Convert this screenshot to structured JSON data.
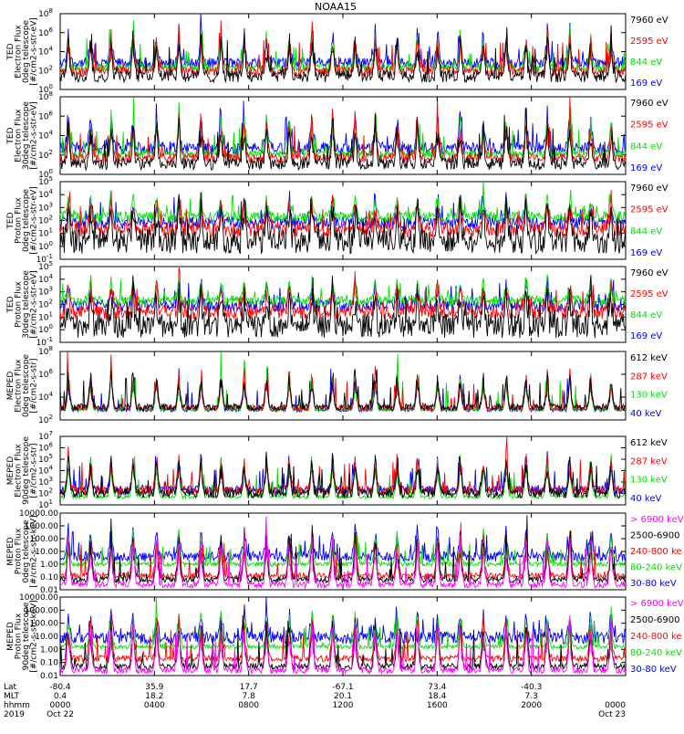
{
  "title": "NOAA15",
  "colors": {
    "blue": "#0000ff",
    "red": "#ff0000",
    "green": "#00e000",
    "black": "#000000",
    "magenta": "#ff00ff"
  },
  "chart_data": [
    {
      "type": "line",
      "ylabel": [
        "TED",
        "Electron Flux",
        "0deg telescope",
        "[#/cm2-s-str-eV]"
      ],
      "ticks": [
        "10^0",
        "10^2",
        "10^4",
        "10^6",
        "10^8"
      ],
      "series": [
        {
          "name": "7960 eV",
          "color": "black",
          "base": 1.4,
          "spread": 0.8
        },
        {
          "name": "2595 eV",
          "color": "red",
          "base": 1.9,
          "spread": 0.6
        },
        {
          "name": "844 eV",
          "color": "green",
          "base": 2.3,
          "spread": 0.5
        },
        {
          "name": "169 eV",
          "color": "blue",
          "base": 2.8,
          "spread": 0.7
        }
      ],
      "ylim": [
        0,
        8
      ]
    },
    {
      "type": "line",
      "ylabel": [
        "TED",
        "Electron Flux",
        "30deg telescope",
        "[#/cm2-s-str-eV]"
      ],
      "ticks": [
        "10^0",
        "10^2",
        "10^4",
        "10^6",
        "10^8"
      ],
      "series": [
        {
          "name": "7960 eV",
          "color": "black",
          "base": 1.1,
          "spread": 0.8
        },
        {
          "name": "2595 eV",
          "color": "red",
          "base": 1.7,
          "spread": 0.6
        },
        {
          "name": "844 eV",
          "color": "green",
          "base": 2.1,
          "spread": 0.5
        },
        {
          "name": "169 eV",
          "color": "blue",
          "base": 2.7,
          "spread": 0.8
        }
      ],
      "ylim": [
        0,
        8
      ]
    },
    {
      "type": "line",
      "ylabel": [
        "TED",
        "Proton Flux",
        "0deg telescope",
        "[#/cm2-s-str-eV]"
      ],
      "ticks": [
        "10^-1",
        "10^0",
        "10^1",
        "10^2",
        "10^3",
        "10^4",
        "10^5"
      ],
      "series": [
        {
          "name": "7960 eV",
          "color": "black",
          "base": 0.4,
          "spread": 1.2
        },
        {
          "name": "2595 eV",
          "color": "red",
          "base": 1.3,
          "spread": 0.7
        },
        {
          "name": "844 eV",
          "color": "green",
          "base": 2.3,
          "spread": 0.5
        },
        {
          "name": "169 eV",
          "color": "blue",
          "base": 1.8,
          "spread": 0.6
        }
      ],
      "ylim": [
        -1,
        5
      ]
    },
    {
      "type": "line",
      "ylabel": [
        "TED",
        "Proton Flux",
        "30deg telescope",
        "[#/cm2-s-str-eV]"
      ],
      "ticks": [
        "10^-1",
        "10^0",
        "10^1",
        "10^2",
        "10^3",
        "10^4",
        "10^5"
      ],
      "series": [
        {
          "name": "7960 eV",
          "color": "black",
          "base": 0.3,
          "spread": 1.2
        },
        {
          "name": "2595 eV",
          "color": "red",
          "base": 1.4,
          "spread": 0.7
        },
        {
          "name": "844 eV",
          "color": "green",
          "base": 2.3,
          "spread": 0.5
        },
        {
          "name": "169 eV",
          "color": "blue",
          "base": 1.9,
          "spread": 0.6
        }
      ],
      "ylim": [
        -1,
        5
      ]
    },
    {
      "type": "line",
      "ylabel": [
        "MEPED",
        "Electron Flux",
        "0deg telescope",
        "[#/cm2-s-str]"
      ],
      "ticks": [
        "10^2",
        "10^4",
        "10^6",
        "10^8"
      ],
      "series": [
        {
          "name": "612 keV",
          "color": "black",
          "base": 2.5,
          "spread": 0.5
        },
        {
          "name": "287 keV",
          "color": "red",
          "base": 2.4,
          "spread": 0.4
        },
        {
          "name": "130 keV",
          "color": "green",
          "base": 2.2,
          "spread": 0.2
        },
        {
          "name": "40 keV",
          "color": "blue",
          "base": 2.2,
          "spread": 0.3
        }
      ],
      "ylim": [
        1,
        9
      ]
    },
    {
      "type": "line",
      "ylabel": [
        "MEPED",
        "Electron Flux",
        "90deg telescope",
        "[#/cm2-s-str]"
      ],
      "ticks": [
        "10^1",
        "10^2",
        "10^3",
        "10^4",
        "10^5",
        "10^6",
        "10^7"
      ],
      "series": [
        {
          "name": "612 keV",
          "color": "black",
          "base": 2.0,
          "spread": 0.5
        },
        {
          "name": "287 keV",
          "color": "red",
          "base": 2.3,
          "spread": 0.5
        },
        {
          "name": "130 keV",
          "color": "green",
          "base": 1.7,
          "spread": 0.2
        },
        {
          "name": "40 keV",
          "color": "blue",
          "base": 2.3,
          "spread": 0.5
        }
      ],
      "ylim": [
        1,
        7
      ]
    },
    {
      "type": "line",
      "ylabel": [
        "MEPED",
        "Proton Flux",
        "0deg telescope",
        "[#/cm2-s-str-keV]"
      ],
      "ticks": [
        "0.01",
        "0.10",
        "1.00",
        "10.00",
        "100.00",
        "1000.00",
        "10000.00"
      ],
      "series": [
        {
          "name": "> 6900 keV",
          "color": "magenta",
          "base": -1.6,
          "spread": 0.3
        },
        {
          "name": "2500-6900",
          "color": "black",
          "base": -1.2,
          "spread": 0.3
        },
        {
          "name": "240-800 ke",
          "color": "red",
          "base": -0.9,
          "spread": 0.3
        },
        {
          "name": "80-240 keV",
          "color": "green",
          "base": 0.0,
          "spread": 0.2
        },
        {
          "name": "30-80 keV",
          "color": "blue",
          "base": 0.6,
          "spread": 0.5
        }
      ],
      "ylim": [
        -2,
        4
      ]
    },
    {
      "type": "line",
      "ylabel": [
        "MEPED",
        "Proton Flux",
        "90deg telescope",
        "[#/cm2-s-str-keV]"
      ],
      "ticks": [
        "0.01",
        "0.10",
        "1.00",
        "10.00",
        "100.00",
        "1000.00",
        "10000.00"
      ],
      "series": [
        {
          "name": "> 6900 keV",
          "color": "magenta",
          "base": -1.6,
          "spread": 0.3
        },
        {
          "name": "2500-6900",
          "color": "black",
          "base": -1.3,
          "spread": 0.3
        },
        {
          "name": "240-800 ke",
          "color": "red",
          "base": -0.7,
          "spread": 0.3
        },
        {
          "name": "80-240 keV",
          "color": "green",
          "base": 0.2,
          "spread": 0.2
        },
        {
          "name": "30-80 keV",
          "color": "blue",
          "base": 0.9,
          "spread": 0.6
        }
      ],
      "ylim": [
        -2,
        4
      ]
    }
  ],
  "xaxis": {
    "row_labels": [
      "Lat",
      "MLT",
      "hhmm",
      "2019"
    ],
    "columns": [
      {
        "lat": "-80.4",
        "mlt": "0.4",
        "hhmm": "0000",
        "date": "Oct 22"
      },
      {
        "lat": "35.9",
        "mlt": "18.2",
        "hhmm": "0400",
        "date": ""
      },
      {
        "lat": "17.7",
        "mlt": "7.8",
        "hhmm": "0800",
        "date": ""
      },
      {
        "lat": "-67.1",
        "mlt": "20.1",
        "hhmm": "1200",
        "date": ""
      },
      {
        "lat": "73.4",
        "mlt": "18.4",
        "hhmm": "1600",
        "date": ""
      },
      {
        "lat": "-40.3",
        "mlt": "7.3",
        "hhmm": "2000",
        "date": ""
      },
      {
        "lat": "",
        "mlt": "",
        "hhmm": "0000",
        "date": "Oct 23"
      }
    ],
    "hours": [
      0,
      4,
      8,
      12,
      16,
      20,
      24
    ]
  }
}
